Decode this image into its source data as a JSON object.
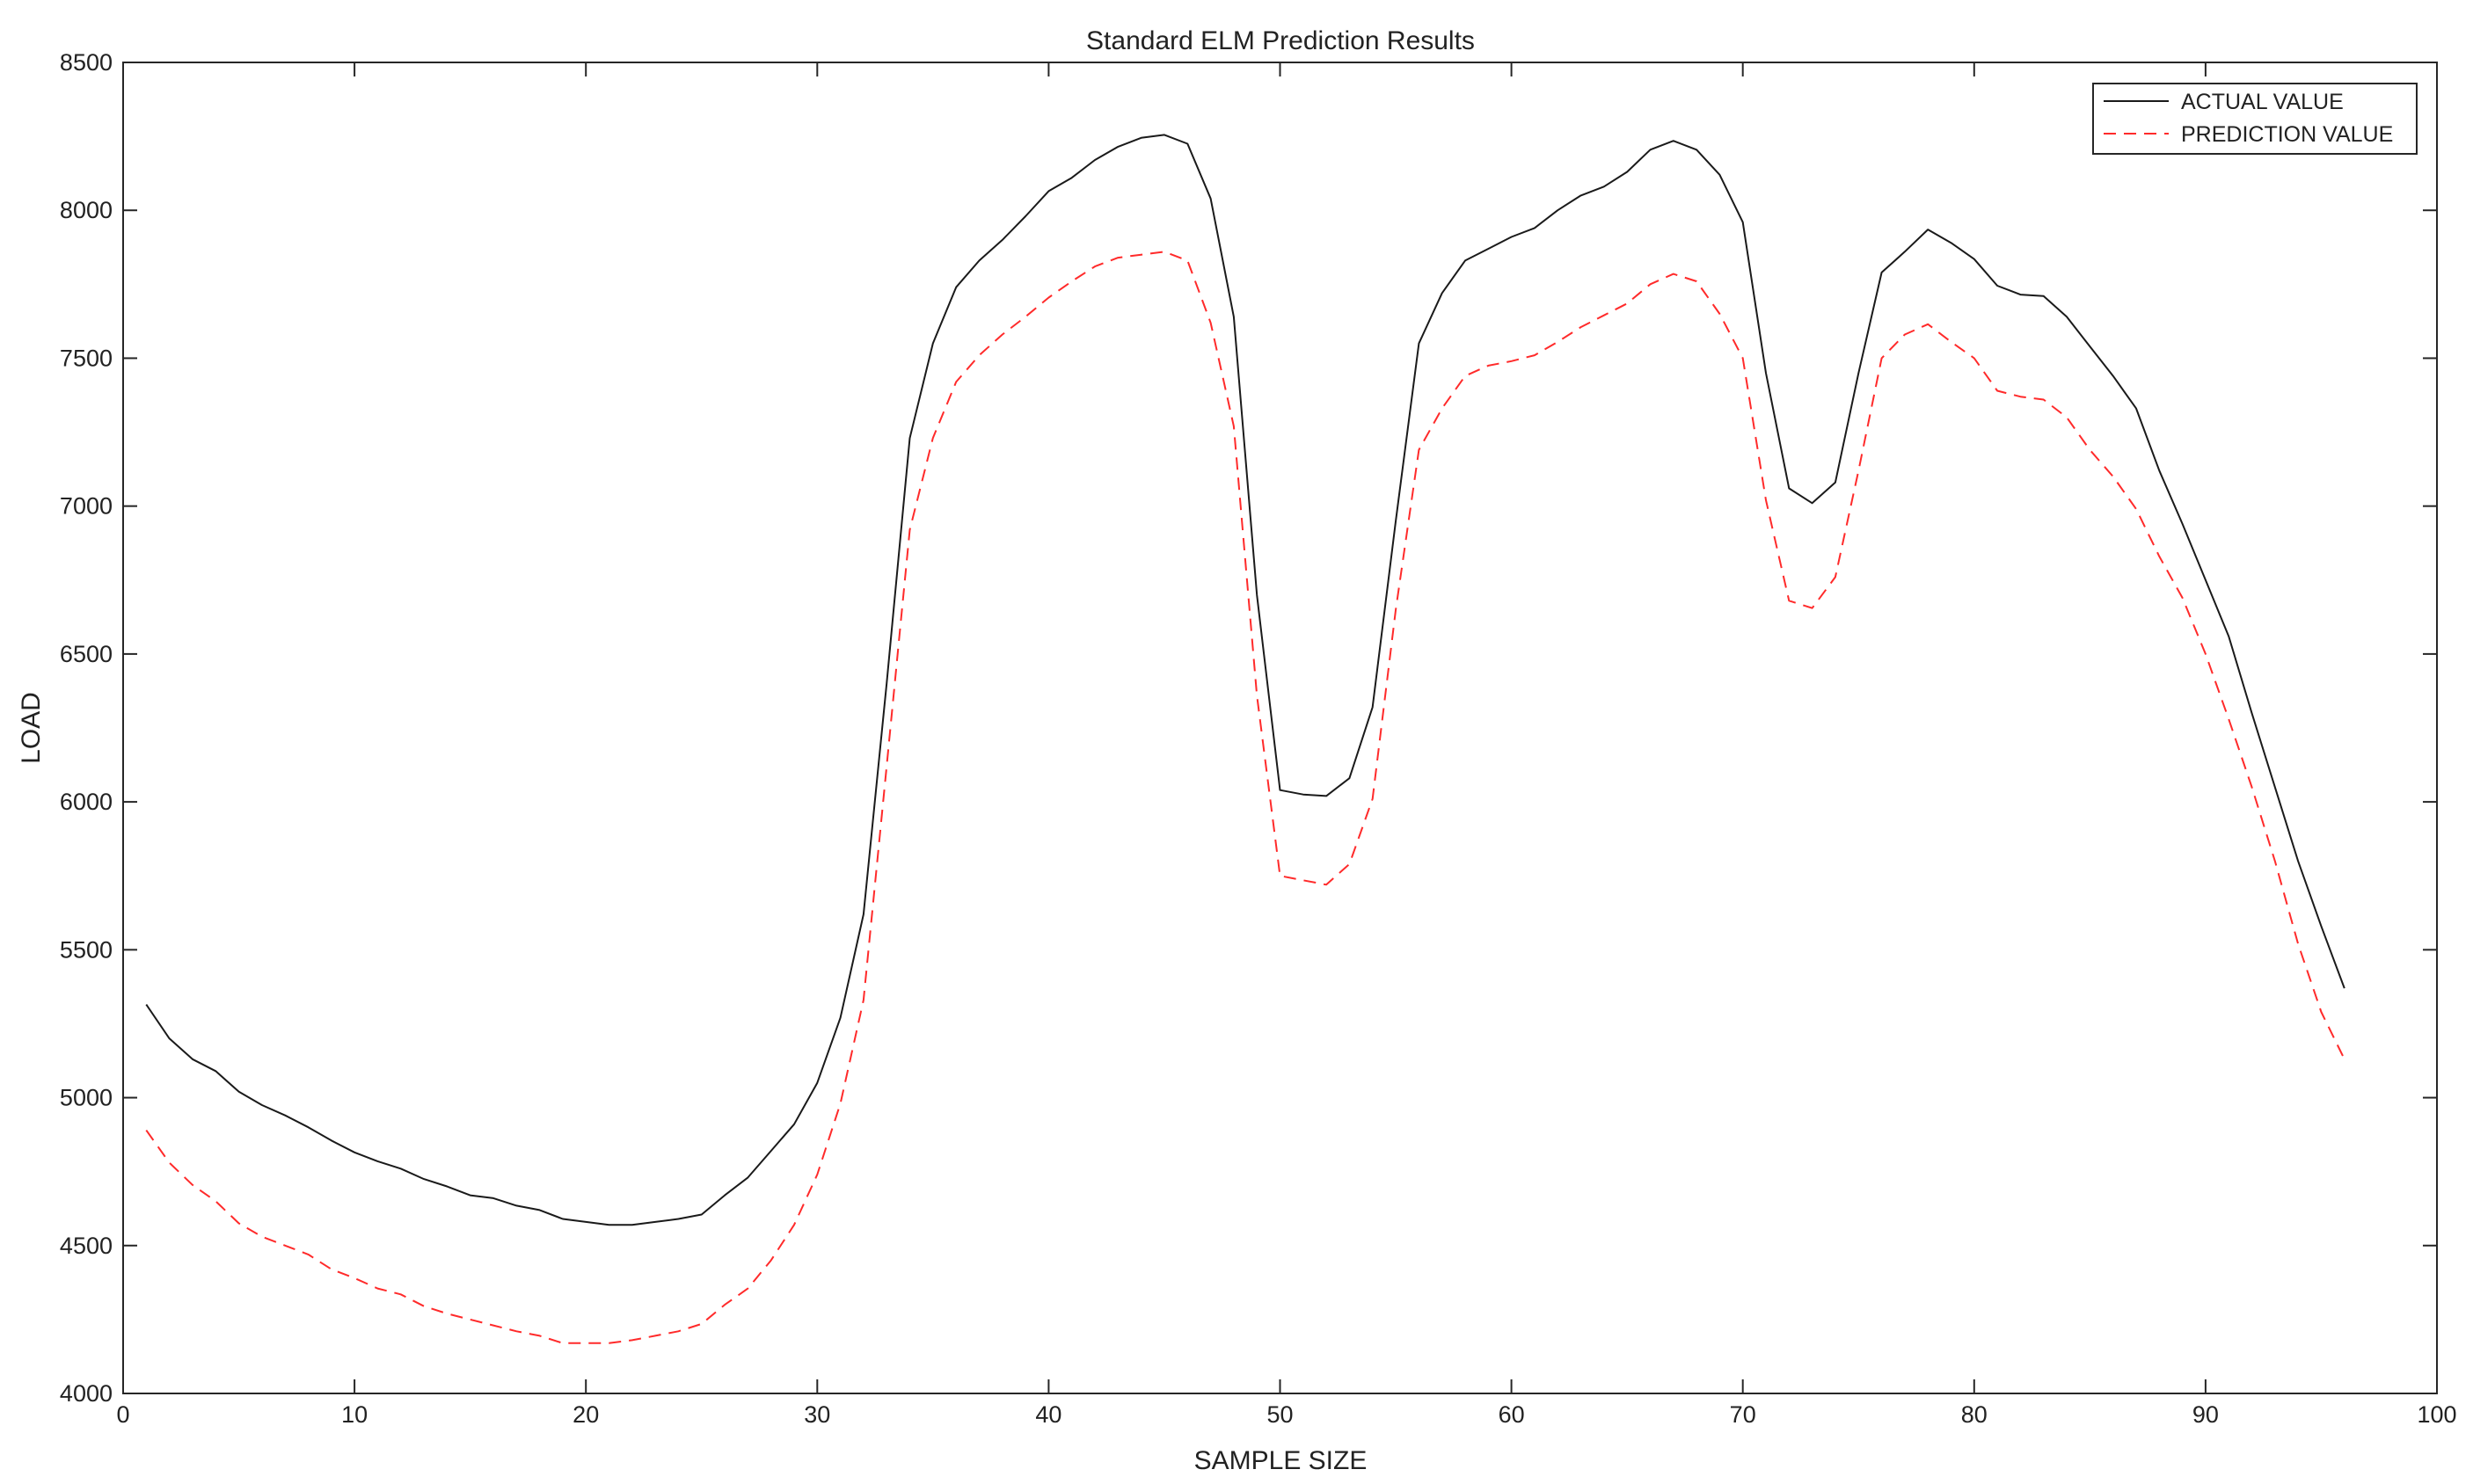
{
  "chart_data": {
    "type": "line",
    "title": "Standard ELM Prediction Results",
    "xlabel": "SAMPLE SIZE",
    "ylabel": "LOAD",
    "xlim": [
      0,
      100
    ],
    "ylim": [
      4000,
      8500
    ],
    "xticks": [
      0,
      10,
      20,
      30,
      40,
      50,
      60,
      70,
      80,
      90,
      100
    ],
    "yticks": [
      4000,
      4500,
      5000,
      5500,
      6000,
      6500,
      7000,
      7500,
      8000,
      8500
    ],
    "grid": false,
    "legend_position": "top-right",
    "x": [
      1,
      2,
      3,
      4,
      5,
      6,
      7,
      8,
      9,
      10,
      11,
      12,
      13,
      14,
      15,
      16,
      17,
      18,
      19,
      20,
      21,
      22,
      23,
      24,
      25,
      26,
      27,
      28,
      29,
      30,
      31,
      32,
      33,
      34,
      35,
      36,
      37,
      38,
      39,
      40,
      41,
      42,
      43,
      44,
      45,
      46,
      47,
      48,
      49,
      50,
      51,
      52,
      53,
      54,
      55,
      56,
      57,
      58,
      59,
      60,
      61,
      62,
      63,
      64,
      65,
      66,
      67,
      68,
      69,
      70,
      71,
      72,
      73,
      74,
      75,
      76,
      77,
      78,
      79,
      80,
      81,
      82,
      83,
      84,
      85,
      86,
      87,
      88,
      89,
      90,
      91,
      92,
      93,
      94,
      95,
      96
    ],
    "series": [
      {
        "name": "ACTUAL VALUE",
        "color": "#1a1a1a",
        "dash": "solid",
        "values": [
          5315,
          5200,
          5130,
          5090,
          5020,
          4975,
          4940,
          4900,
          4855,
          4815,
          4785,
          4760,
          4725,
          4700,
          4670,
          4660,
          4635,
          4620,
          4590,
          4580,
          4570,
          4570,
          4580,
          4590,
          4605,
          4670,
          4730,
          4820,
          4910,
          5050,
          5270,
          5620,
          6400,
          7230,
          7550,
          7740,
          7830,
          7900,
          7980,
          8065,
          8110,
          8170,
          8215,
          8245,
          8255,
          8225,
          8040,
          7640,
          6700,
          6040,
          6025,
          6020,
          6080,
          6320,
          6950,
          7550,
          7720,
          7830,
          7870,
          7910,
          7940,
          8000,
          8050,
          8080,
          8130,
          8205,
          8235,
          8205,
          8120,
          7960,
          7450,
          7060,
          7010,
          7080,
          7450,
          7790,
          7860,
          7935,
          7890,
          7835,
          7745,
          7715,
          7710,
          7640,
          7540,
          7440,
          7330,
          7120,
          6940,
          6750,
          6560,
          6300,
          6050,
          5800,
          5580,
          5370
        ]
      },
      {
        "name": "PREDICTION VALUE",
        "color": "#ff2a2a",
        "dash": "dashed",
        "values": [
          4890,
          4780,
          4705,
          4650,
          4575,
          4530,
          4500,
          4470,
          4420,
          4390,
          4355,
          4335,
          4295,
          4270,
          4250,
          4230,
          4210,
          4195,
          4170,
          4170,
          4170,
          4180,
          4195,
          4210,
          4235,
          4300,
          4355,
          4450,
          4570,
          4740,
          4980,
          5330,
          6120,
          6920,
          7230,
          7420,
          7510,
          7580,
          7640,
          7705,
          7760,
          7810,
          7840,
          7850,
          7860,
          7830,
          7620,
          7270,
          6360,
          5750,
          5735,
          5720,
          5790,
          6010,
          6650,
          7190,
          7330,
          7440,
          7475,
          7490,
          7510,
          7555,
          7605,
          7645,
          7685,
          7750,
          7785,
          7760,
          7650,
          7500,
          7020,
          6680,
          6655,
          6760,
          7120,
          7500,
          7580,
          7615,
          7555,
          7500,
          7390,
          7370,
          7360,
          7300,
          7190,
          7100,
          6990,
          6830,
          6690,
          6500,
          6280,
          6050,
          5800,
          5520,
          5290,
          5130
        ]
      }
    ]
  }
}
